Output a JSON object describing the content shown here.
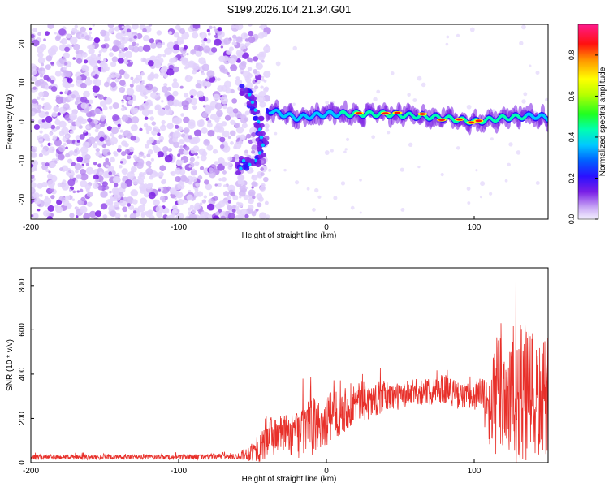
{
  "title": "S199.2026.104.21.34.G01",
  "chart_data": [
    {
      "type": "heatmap",
      "title": "S199.2026.104.21.34.G01",
      "xlabel": "Height of straight line (km)",
      "ylabel": "Frequency (Hz)",
      "xlim": [
        -200,
        150
      ],
      "ylim": [
        -25,
        25
      ],
      "xticks": [
        "-200",
        "-100",
        "0",
        "100"
      ],
      "xtick_values": [
        -200,
        -100,
        0,
        100
      ],
      "yticks": [
        "20",
        "10",
        "0",
        "-10",
        "-20"
      ],
      "ytick_values": [
        20,
        10,
        0,
        -10,
        -20
      ],
      "colorbar": {
        "label": "Normalized spectral amplitude",
        "range": [
          0,
          0.95
        ],
        "ticks": [
          "0.0",
          "0.2",
          "0.4",
          "0.6",
          "0.8"
        ],
        "tick_values": [
          0.0,
          0.2,
          0.4,
          0.6,
          0.8
        ]
      },
      "ridge": {
        "description": "Strong narrow-band signal near 0-3 Hz from about -40 km to 150 km; broadband weak noise below -40 km; curved feature near -60 to -40 km from 8 Hz down to -12 Hz",
        "x": [
          -40,
          -30,
          -20,
          0,
          20,
          40,
          60,
          80,
          100,
          120,
          140,
          150
        ],
        "y": [
          3,
          2,
          1,
          2,
          2,
          2,
          1.5,
          1,
          0,
          1,
          1.5,
          1
        ]
      }
    },
    {
      "type": "line",
      "xlabel": "Height of straight line (km)",
      "ylabel": "SNR (10 * v/v)",
      "xlim": [
        -200,
        150
      ],
      "ylim": [
        0,
        880
      ],
      "xticks": [
        "-200",
        "-100",
        "0",
        "100"
      ],
      "xtick_values": [
        -200,
        -100,
        0,
        100
      ],
      "yticks": [
        "0",
        "200",
        "400",
        "600",
        "800"
      ],
      "ytick_values": [
        0,
        200,
        400,
        600,
        800
      ],
      "color": "#e8302a",
      "envelope": {
        "x": [
          -200,
          -150,
          -100,
          -60,
          -45,
          -40,
          -30,
          -20,
          -10,
          0,
          10,
          20,
          30,
          40,
          50,
          60,
          70,
          80,
          90,
          100,
          105,
          110,
          115,
          120,
          125,
          130,
          135,
          140,
          145,
          150
        ],
        "mean": [
          25,
          25,
          25,
          30,
          60,
          120,
          130,
          130,
          160,
          190,
          240,
          270,
          280,
          300,
          300,
          320,
          320,
          340,
          300,
          300,
          310,
          220,
          300,
          320,
          300,
          300,
          300,
          280,
          270,
          300
        ],
        "amp": [
          12,
          12,
          12,
          14,
          60,
          110,
          80,
          110,
          130,
          120,
          110,
          100,
          80,
          70,
          60,
          60,
          60,
          70,
          60,
          60,
          90,
          150,
          280,
          300,
          320,
          330,
          330,
          300,
          260,
          280
        ]
      }
    }
  ]
}
